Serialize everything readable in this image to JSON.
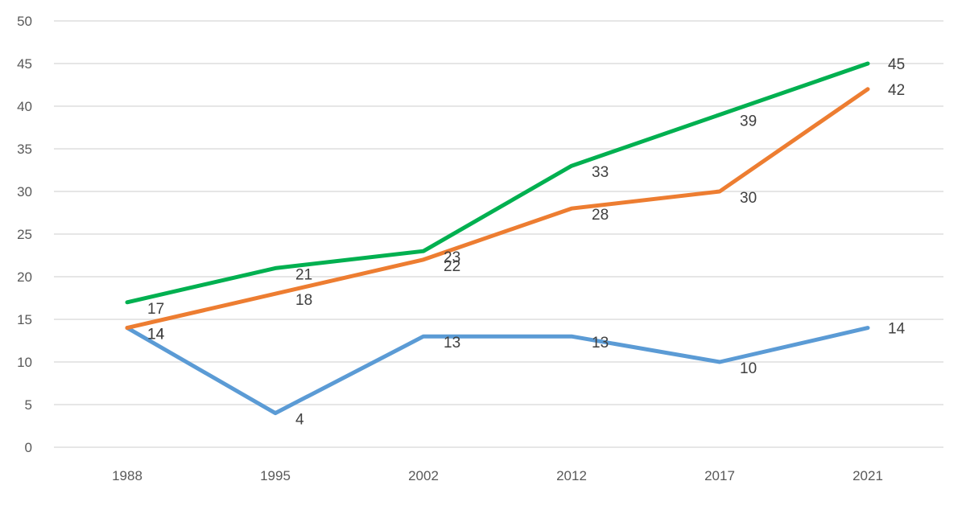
{
  "chart_data": {
    "type": "line",
    "title": "",
    "xlabel": "",
    "ylabel": "",
    "categories": [
      "1988",
      "1995",
      "2002",
      "2012",
      "2017",
      "2021"
    ],
    "ylim": [
      0,
      50
    ],
    "yticks": [
      0,
      5,
      10,
      15,
      20,
      25,
      30,
      35,
      40,
      45,
      50
    ],
    "grid": true,
    "legend": "none",
    "series": [
      {
        "color": "#5b9bd5",
        "values": [
          14,
          4,
          13,
          13,
          10,
          14
        ]
      },
      {
        "color": "#ed7d31",
        "values": [
          14,
          18,
          22,
          28,
          30,
          42
        ]
      },
      {
        "color": "#00b050",
        "values": [
          17,
          21,
          23,
          33,
          39,
          45
        ]
      }
    ]
  }
}
